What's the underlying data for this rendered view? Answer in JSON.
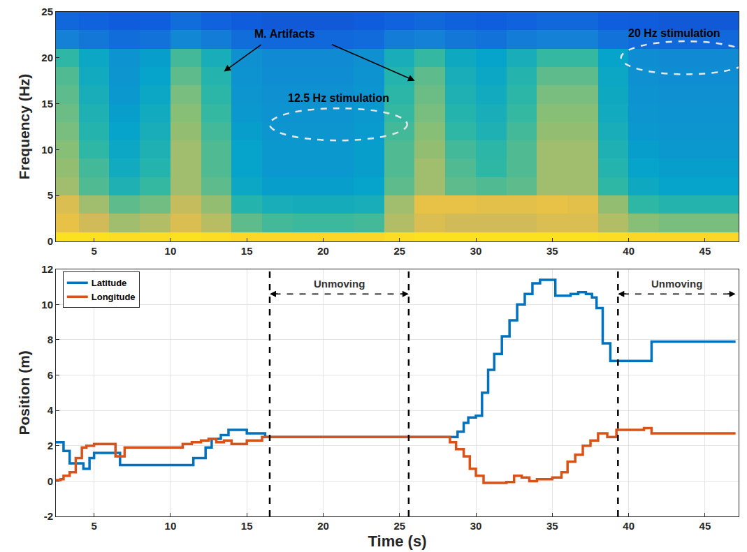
{
  "chart_data": [
    {
      "type": "heatmap",
      "ylabel": "Frequency (Hz)",
      "x": [
        3,
        5,
        7,
        9,
        11,
        13,
        15,
        17,
        19,
        21,
        23,
        25,
        27,
        29,
        31,
        33,
        35,
        37,
        39,
        41,
        43,
        45,
        47
      ],
      "y": [
        0,
        2,
        4,
        6,
        8,
        10,
        12,
        14,
        16,
        18,
        20,
        22,
        24
      ],
      "z": [
        [
          0.95,
          0.95,
          0.94,
          0.94,
          0.95,
          0.94,
          0.93,
          0.93,
          0.93,
          0.93,
          0.93,
          0.94,
          0.95,
          0.95,
          0.95,
          0.95,
          0.95,
          0.95,
          0.94,
          0.93,
          0.93,
          0.93,
          0.93
        ],
        [
          0.85,
          0.8,
          0.72,
          0.75,
          0.82,
          0.76,
          0.62,
          0.58,
          0.57,
          0.57,
          0.58,
          0.75,
          0.82,
          0.8,
          0.8,
          0.8,
          0.82,
          0.82,
          0.75,
          0.68,
          0.66,
          0.66,
          0.66
        ],
        [
          0.82,
          0.72,
          0.62,
          0.65,
          0.78,
          0.7,
          0.52,
          0.48,
          0.47,
          0.47,
          0.48,
          0.72,
          0.85,
          0.85,
          0.84,
          0.84,
          0.85,
          0.84,
          0.7,
          0.55,
          0.52,
          0.52,
          0.52
        ],
        [
          0.72,
          0.6,
          0.5,
          0.56,
          0.72,
          0.62,
          0.44,
          0.4,
          0.4,
          0.4,
          0.42,
          0.62,
          0.72,
          0.62,
          0.6,
          0.62,
          0.72,
          0.72,
          0.55,
          0.45,
          0.42,
          0.42,
          0.42
        ],
        [
          0.7,
          0.58,
          0.46,
          0.52,
          0.72,
          0.6,
          0.42,
          0.38,
          0.38,
          0.38,
          0.4,
          0.6,
          0.72,
          0.6,
          0.55,
          0.6,
          0.72,
          0.72,
          0.52,
          0.42,
          0.4,
          0.4,
          0.4
        ],
        [
          0.68,
          0.55,
          0.44,
          0.5,
          0.72,
          0.6,
          0.42,
          0.38,
          0.38,
          0.38,
          0.4,
          0.6,
          0.7,
          0.58,
          0.54,
          0.6,
          0.72,
          0.72,
          0.5,
          0.4,
          0.38,
          0.38,
          0.38
        ],
        [
          0.66,
          0.52,
          0.42,
          0.48,
          0.7,
          0.58,
          0.4,
          0.37,
          0.37,
          0.37,
          0.39,
          0.58,
          0.68,
          0.55,
          0.5,
          0.58,
          0.7,
          0.7,
          0.48,
          0.38,
          0.37,
          0.37,
          0.37
        ],
        [
          0.64,
          0.5,
          0.4,
          0.46,
          0.68,
          0.56,
          0.38,
          0.36,
          0.36,
          0.36,
          0.38,
          0.56,
          0.66,
          0.52,
          0.48,
          0.56,
          0.68,
          0.68,
          0.46,
          0.37,
          0.36,
          0.36,
          0.36
        ],
        [
          0.62,
          0.48,
          0.38,
          0.44,
          0.66,
          0.54,
          0.37,
          0.35,
          0.35,
          0.35,
          0.37,
          0.54,
          0.64,
          0.5,
          0.46,
          0.54,
          0.66,
          0.66,
          0.45,
          0.36,
          0.35,
          0.35,
          0.35
        ],
        [
          0.6,
          0.46,
          0.37,
          0.42,
          0.62,
          0.52,
          0.36,
          0.34,
          0.34,
          0.34,
          0.36,
          0.52,
          0.62,
          0.48,
          0.44,
          0.52,
          0.62,
          0.62,
          0.44,
          0.35,
          0.34,
          0.34,
          0.34
        ],
        [
          0.55,
          0.44,
          0.36,
          0.4,
          0.58,
          0.48,
          0.35,
          0.33,
          0.33,
          0.33,
          0.35,
          0.48,
          0.56,
          0.45,
          0.42,
          0.48,
          0.56,
          0.56,
          0.42,
          0.34,
          0.33,
          0.33,
          0.33
        ],
        [
          0.3,
          0.26,
          0.22,
          0.24,
          0.32,
          0.28,
          0.22,
          0.2,
          0.2,
          0.2,
          0.21,
          0.28,
          0.3,
          0.26,
          0.24,
          0.28,
          0.3,
          0.3,
          0.24,
          0.21,
          0.2,
          0.2,
          0.2
        ],
        [
          0.2,
          0.18,
          0.15,
          0.16,
          0.22,
          0.18,
          0.15,
          0.14,
          0.14,
          0.14,
          0.15,
          0.18,
          0.2,
          0.17,
          0.16,
          0.18,
          0.2,
          0.2,
          0.16,
          0.15,
          0.14,
          0.14,
          0.14
        ]
      ],
      "zlim": [
        0,
        1
      ],
      "xlim": [
        2.5,
        47.2
      ],
      "xticks": [
        5,
        10,
        15,
        20,
        25,
        30,
        35,
        40,
        45
      ],
      "ylim": [
        0,
        25
      ],
      "yticks": [
        0,
        5,
        10,
        15,
        20,
        25
      ],
      "grid": false,
      "annotations": [
        {
          "text": "M. Artifacts",
          "x": 17.5,
          "y": 22.6,
          "arrows_to": [
            [
              13.5,
              18.5
            ],
            [
              26,
              17.5
            ]
          ]
        },
        {
          "text": "12.5 Hz stimulation",
          "x": 21,
          "y": 15.6
        },
        {
          "text": "20 Hz stimulation",
          "x": 43,
          "y": 22.7
        }
      ],
      "regions": [
        {
          "x": [
            16.5,
            25.5
          ],
          "y": [
            11,
            14.5
          ]
        },
        {
          "x": [
            39.5,
            48
          ],
          "y": [
            18.2,
            21.8
          ]
        }
      ]
    },
    {
      "type": "line",
      "xlabel": "Time (s)",
      "ylabel": "Position (m)",
      "xlim": [
        2.5,
        47.2
      ],
      "xticks": [
        5,
        10,
        15,
        20,
        25,
        30,
        35,
        40,
        45
      ],
      "ylim": [
        -2,
        12
      ],
      "yticks": [
        -2,
        0,
        2,
        4,
        6,
        8,
        10,
        12
      ],
      "grid": true,
      "legend": "top left",
      "series": [
        {
          "name": "Latitude",
          "color": "#0072bd",
          "line_style": "step",
          "x": [
            2.5,
            2.9,
            3.0,
            3.4,
            4.0,
            4.3,
            4.7,
            5.0,
            6.5,
            6.7,
            11.0,
            11.5,
            12.3,
            12.7,
            13.3,
            13.8,
            15.0,
            16.2,
            28.5,
            28.8,
            29.2,
            29.5,
            30.0,
            30.4,
            30.8,
            31.2,
            31.7,
            32.2,
            32.7,
            33.2,
            33.7,
            34.2,
            35.2,
            35.7,
            36.2,
            36.7,
            37.2,
            37.6,
            37.9,
            38.3,
            38.8,
            41.5,
            47
          ],
          "values": [
            2.2,
            2.2,
            1.7,
            1.0,
            1.0,
            0.7,
            1.3,
            1.6,
            1.6,
            0.9,
            0.9,
            1.3,
            1.9,
            2.4,
            2.6,
            2.9,
            2.7,
            2.5,
            2.5,
            2.8,
            3.3,
            3.6,
            3.7,
            5.0,
            6.3,
            7.2,
            8.2,
            9.1,
            10.0,
            10.6,
            11.2,
            11.4,
            10.5,
            10.5,
            10.6,
            10.7,
            10.6,
            10.4,
            9.8,
            7.8,
            6.8,
            7.9,
            7.9
          ]
        },
        {
          "name": "Longitude",
          "color": "#d95319",
          "line_style": "step",
          "x": [
            2.5,
            2.8,
            3.0,
            3.4,
            3.8,
            4.2,
            4.5,
            5.0,
            6.4,
            7.0,
            10.8,
            11.4,
            12.0,
            12.5,
            13.0,
            13.5,
            14.0,
            15.0,
            16.0,
            28.3,
            28.7,
            29.2,
            29.6,
            30.0,
            30.5,
            32.0,
            32.5,
            33.0,
            33.5,
            34.0,
            35.0,
            35.6,
            36.0,
            36.5,
            37.0,
            37.5,
            38.0,
            38.6,
            39.2,
            41.0,
            41.5,
            47
          ],
          "values": [
            0.05,
            0.1,
            0.3,
            0.5,
            1.3,
            1.9,
            2.0,
            2.1,
            1.4,
            1.9,
            2.1,
            2.2,
            2.3,
            2.4,
            2.2,
            2.3,
            2.1,
            2.3,
            2.5,
            2.2,
            1.8,
            1.4,
            0.7,
            0.3,
            -0.1,
            -0.05,
            0.3,
            0.2,
            0.0,
            0.1,
            0.2,
            0.5,
            1.1,
            1.5,
            2.0,
            2.3,
            2.7,
            2.5,
            2.9,
            3.0,
            2.7,
            2.7
          ]
        }
      ],
      "vlines": [
        16.5,
        25.6,
        39.3
      ],
      "segments": [
        {
          "text": "Unmoving",
          "x": [
            16.5,
            25.6
          ],
          "y": 10.6
        },
        {
          "text": "Unmoving",
          "x": [
            39.3,
            47
          ],
          "y": 10.6
        }
      ]
    }
  ]
}
